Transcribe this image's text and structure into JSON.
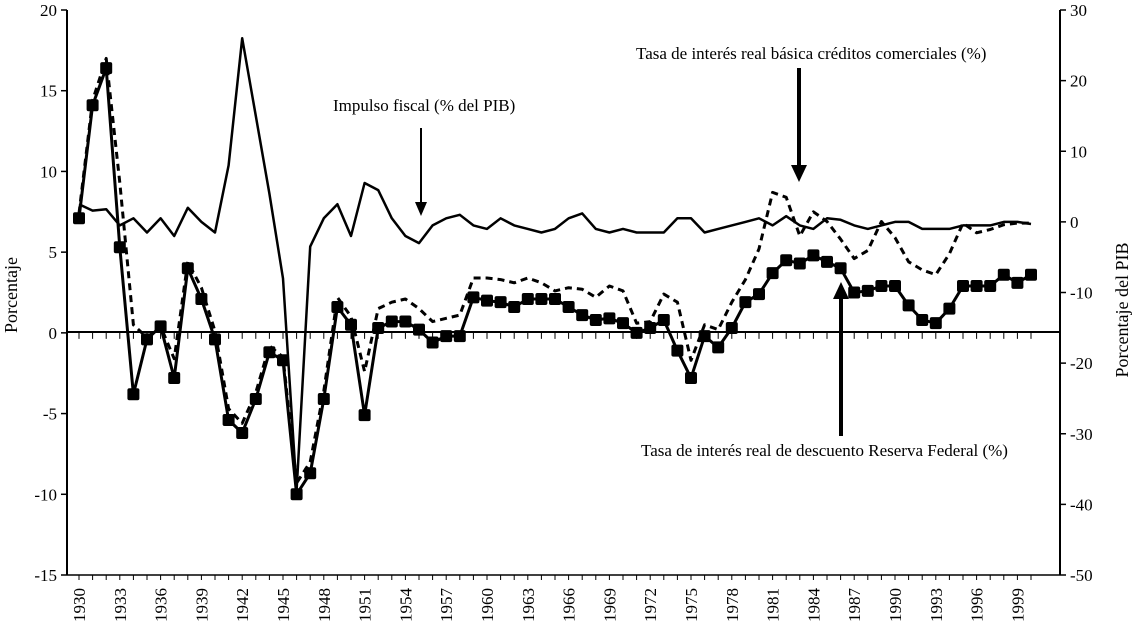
{
  "chart_data": {
    "type": "line",
    "title": "",
    "xlabel": "",
    "ylabel_left": "Porcentaje",
    "ylabel_right": "Porcentaje del PIB",
    "ylim_left": [
      -15,
      20
    ],
    "ylim_right": [
      -50,
      30
    ],
    "xlim": [
      1930,
      2000
    ],
    "x_ticks": [
      "1930",
      "1933",
      "1936",
      "1939",
      "1942",
      "1945",
      "1948",
      "1951",
      "1954",
      "1957",
      "1960",
      "1963",
      "1966",
      "1969",
      "1972",
      "1975",
      "1978",
      "1981",
      "1984",
      "1987",
      "1990",
      "1993",
      "1996",
      "1999"
    ],
    "y_ticks_left": [
      "20",
      "15",
      "10",
      "5",
      "0",
      "-5",
      "-10",
      "-15"
    ],
    "y_ticks_right": [
      "30",
      "20",
      "10",
      "0",
      "-10",
      "-20",
      "-30",
      "-40",
      "-50"
    ],
    "series": [
      {
        "name": "Tasa de interés real de descuento Reserva Federal (%)",
        "axis": "left",
        "style": "solid-square-markers",
        "x": [
          1930,
          1931,
          1932,
          1933,
          1934,
          1935,
          1936,
          1937,
          1938,
          1939,
          1940,
          1941,
          1942,
          1943,
          1944,
          1945,
          1946,
          1947,
          1948,
          1949,
          1950,
          1951,
          1952,
          1953,
          1954,
          1955,
          1956,
          1957,
          1958,
          1959,
          1960,
          1961,
          1962,
          1963,
          1964,
          1965,
          1966,
          1967,
          1968,
          1969,
          1970,
          1971,
          1972,
          1973,
          1974,
          1975,
          1976,
          1977,
          1978,
          1979,
          1980,
          1981,
          1982,
          1983,
          1984,
          1985,
          1986,
          1987,
          1988,
          1989,
          1990,
          1991,
          1992,
          1993,
          1994,
          1995,
          1996,
          1997,
          1998,
          1999,
          2000
        ],
        "values": [
          7.1,
          14.1,
          16.4,
          5.3,
          -3.8,
          -0.4,
          0.4,
          -2.8,
          4.0,
          2.1,
          -0.4,
          -5.4,
          -6.2,
          -4.1,
          -1.2,
          -1.7,
          -10.0,
          -8.7,
          -4.1,
          1.6,
          0.5,
          -5.1,
          0.3,
          0.7,
          0.7,
          0.2,
          -0.6,
          -0.2,
          -0.2,
          2.2,
          2.0,
          1.9,
          1.6,
          2.1,
          2.1,
          2.1,
          1.6,
          1.1,
          0.8,
          0.9,
          0.6,
          0.0,
          0.3,
          0.8,
          -1.1,
          -2.8,
          -0.2,
          -0.9,
          0.3,
          1.9,
          2.4,
          3.7,
          4.5,
          4.3,
          4.8,
          4.4,
          4.0,
          2.5,
          2.6,
          2.9,
          2.9,
          1.7,
          0.8,
          0.6,
          1.5,
          2.9,
          2.9,
          2.9,
          3.6,
          3.1,
          3.6
        ]
      },
      {
        "name": "Tasa de interés real básica créditos comerciales (%)",
        "axis": "left",
        "style": "dashed",
        "x": [
          1930,
          1931,
          1932,
          1933,
          1934,
          1935,
          1936,
          1937,
          1938,
          1939,
          1940,
          1941,
          1942,
          1943,
          1944,
          1945,
          1946,
          1947,
          1948,
          1949,
          1950,
          1951,
          1952,
          1953,
          1954,
          1955,
          1956,
          1957,
          1958,
          1959,
          1960,
          1961,
          1962,
          1963,
          1964,
          1965,
          1966,
          1967,
          1968,
          1969,
          1970,
          1971,
          1972,
          1973,
          1974,
          1975,
          1976,
          1977,
          1978,
          1979,
          1980,
          1981,
          1982,
          1983,
          1984,
          1985,
          1986,
          1987,
          1988,
          1989,
          1990,
          1991,
          1992,
          1993,
          1994,
          1995,
          1996,
          1997,
          1998,
          1999,
          2000
        ],
        "values": [
          7.4,
          14.4,
          17.0,
          9.3,
          0.5,
          -0.3,
          0.4,
          -1.6,
          4.4,
          2.8,
          0.1,
          -4.7,
          -5.6,
          -3.7,
          -0.8,
          -1.5,
          -9.3,
          -8.0,
          -3.6,
          2.2,
          1.0,
          -2.4,
          1.5,
          1.9,
          2.1,
          1.5,
          0.7,
          0.9,
          1.1,
          3.4,
          3.4,
          3.3,
          3.1,
          3.4,
          3.1,
          2.6,
          2.8,
          2.7,
          2.2,
          2.9,
          2.6,
          0.6,
          0.7,
          2.4,
          1.9,
          -1.7,
          0.5,
          0.2,
          1.9,
          3.3,
          5.2,
          8.7,
          8.4,
          6.0,
          7.5,
          6.9,
          5.8,
          4.6,
          5.1,
          6.9,
          5.9,
          4.4,
          3.9,
          3.6,
          4.9,
          6.8,
          6.2,
          6.4,
          6.7,
          6.8,
          6.8
        ]
      },
      {
        "name": "Impulso fiscal (% del PIB)",
        "axis": "right",
        "style": "solid",
        "x": [
          1930,
          1931,
          1932,
          1933,
          1934,
          1935,
          1936,
          1937,
          1938,
          1939,
          1940,
          1941,
          1942,
          1943,
          1944,
          1945,
          1946,
          1947,
          1948,
          1949,
          1950,
          1951,
          1952,
          1953,
          1954,
          1955,
          1956,
          1957,
          1958,
          1959,
          1960,
          1961,
          1962,
          1963,
          1964,
          1965,
          1966,
          1967,
          1968,
          1969,
          1970,
          1971,
          1972,
          1973,
          1974,
          1975,
          1976,
          1977,
          1978,
          1979,
          1980,
          1981,
          1982,
          1983,
          1984,
          1985,
          1986,
          1987,
          1988,
          1989,
          1990,
          1991,
          1992,
          1993,
          1994,
          1995,
          1996,
          1997,
          1998,
          1999,
          2000
        ],
        "values": [
          2.5,
          1.6,
          1.8,
          -0.5,
          0.5,
          -1.5,
          0.5,
          -2.0,
          2.0,
          0,
          -1.5,
          8,
          26,
          15,
          4,
          -8,
          -38,
          -3.5,
          0.5,
          2.5,
          -2.0,
          5.5,
          4.5,
          0.5,
          -2.0,
          -3.0,
          -0.5,
          0.5,
          1.0,
          -0.5,
          -1.0,
          0.5,
          -0.5,
          -1.0,
          -1.5,
          -1.0,
          0.5,
          1.2,
          -1.0,
          -1.5,
          -1.0,
          -1.5,
          -1.5,
          -1.5,
          0.5,
          0.5,
          -1.5,
          -1.0,
          -0.5,
          0,
          0.5,
          -0.5,
          0.8,
          -0.5,
          -1.0,
          0.5,
          0.3,
          -0.5,
          -1.0,
          -0.5,
          0,
          0,
          -1.0,
          -1.0,
          -1.0,
          -0.5,
          -0.5,
          -0.5,
          0,
          0,
          -0.3
        ]
      }
    ],
    "annotations": [
      {
        "text": "Tasa de interés real básica créditos comerciales (%)",
        "arrow_to": {
          "x": 1982,
          "y_left": 8.6
        }
      },
      {
        "text": "Impulso fiscal (% del PIB)",
        "arrow_to": {
          "x": 1955,
          "y_left": 7.0
        }
      },
      {
        "text": "Tasa de interés real de descuento Reserva Federal (%)",
        "arrow_to": {
          "x": 1985,
          "y_left": 3.2
        }
      }
    ]
  }
}
